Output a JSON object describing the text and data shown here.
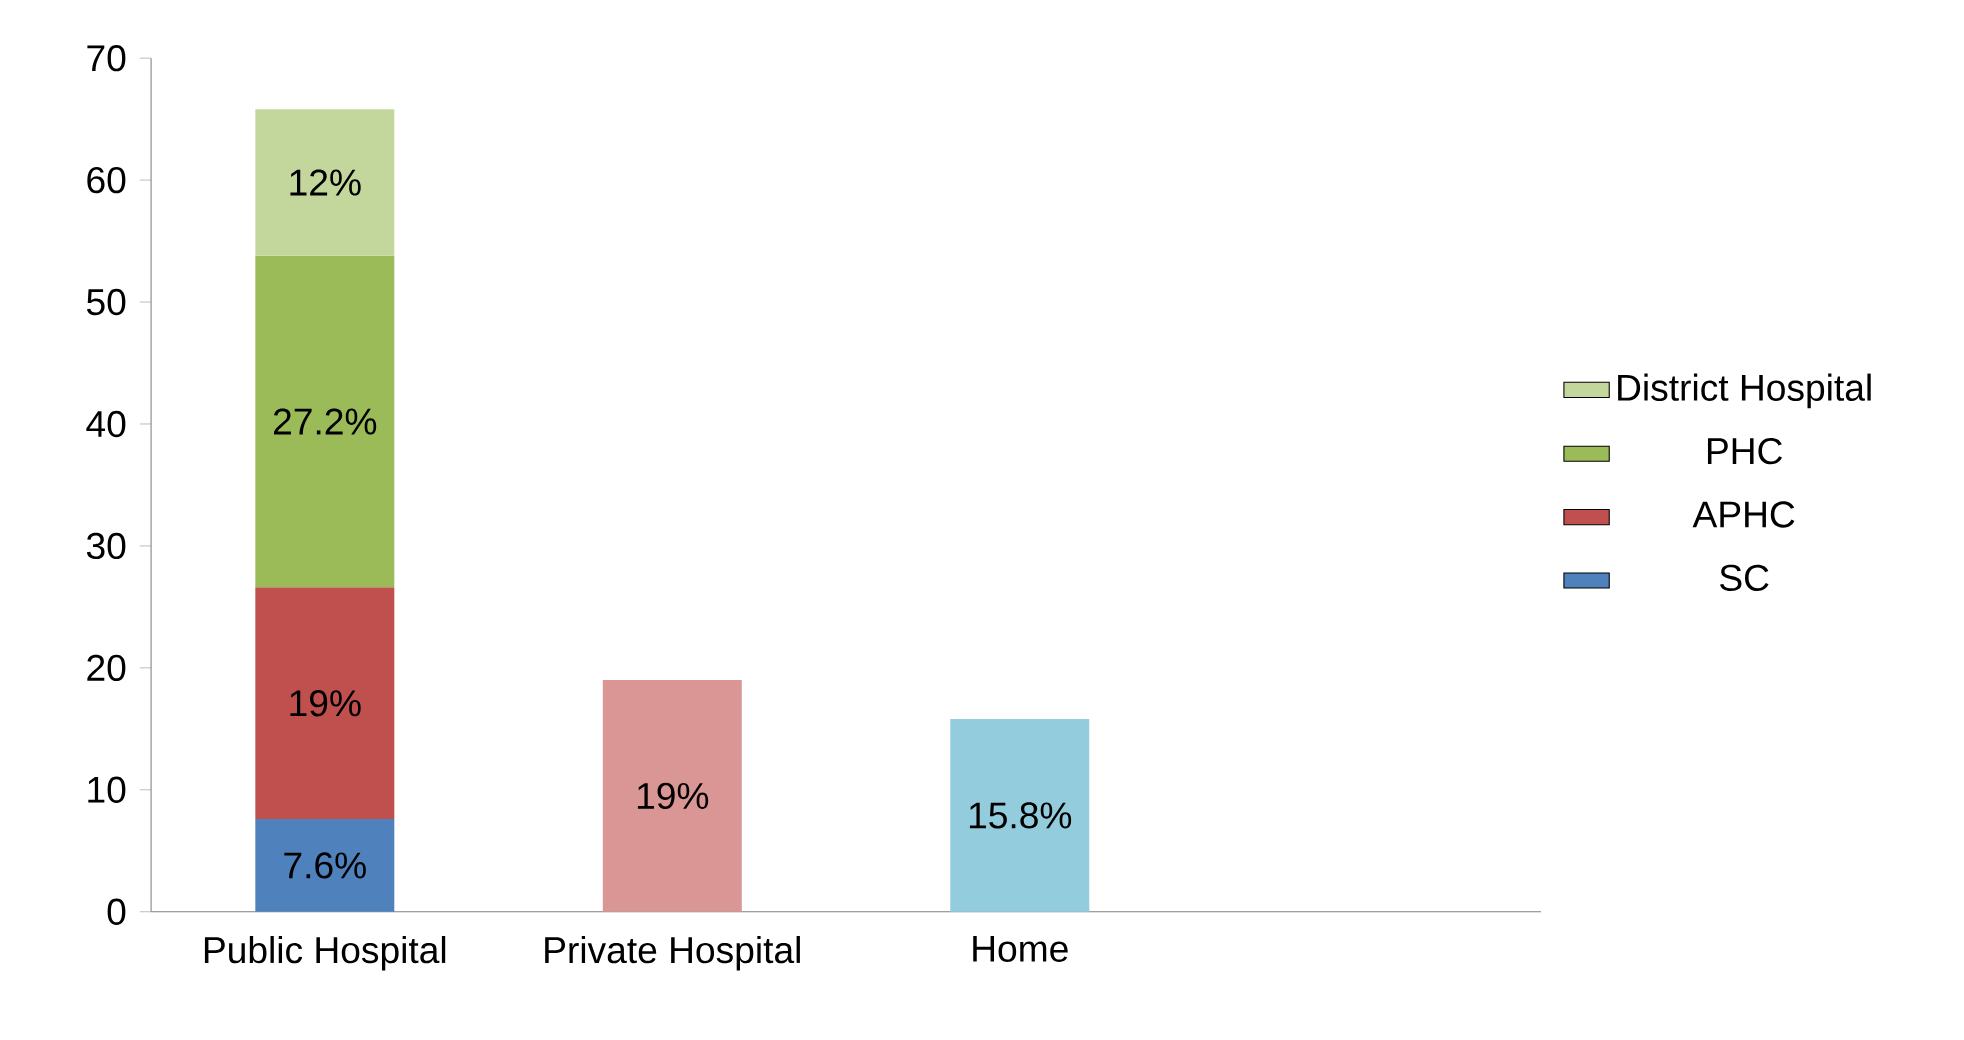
{
  "chart_data": {
    "type": "bar",
    "stacked": true,
    "categories": [
      "Public Hospital",
      "Private Hospital",
      "Home",
      null
    ],
    "series": [
      {
        "name": "SC",
        "color": "#4f81bd",
        "values": [
          7.6,
          null,
          null,
          null
        ],
        "value_labels": [
          "7.6%",
          null,
          null,
          null
        ]
      },
      {
        "name": "APHC",
        "color": "#c0504d",
        "values": [
          19,
          null,
          null,
          null
        ],
        "value_labels": [
          "19%",
          null,
          null,
          null
        ]
      },
      {
        "name": "PHC",
        "color": "#9bbb59",
        "values": [
          27.2,
          null,
          null,
          null
        ],
        "value_labels": [
          "27.2%",
          null,
          null,
          null
        ]
      },
      {
        "name": "District Hospital",
        "color": "#c3d69b",
        "values": [
          12,
          null,
          null,
          null
        ],
        "value_labels": [
          "12%",
          null,
          null,
          null
        ]
      },
      {
        "color": "#d99694",
        "values": [
          null,
          19,
          null,
          null
        ],
        "value_labels": [
          null,
          "19%",
          null,
          null
        ]
      },
      {
        "color": "#93cddd",
        "values": [
          null,
          null,
          15.8,
          null
        ],
        "value_labels": [
          null,
          null,
          "15.8%",
          null
        ]
      }
    ],
    "ylim": [
      0,
      70
    ],
    "yticks": [
      0,
      10,
      20,
      30,
      40,
      50,
      60,
      70
    ],
    "legend": "right"
  }
}
